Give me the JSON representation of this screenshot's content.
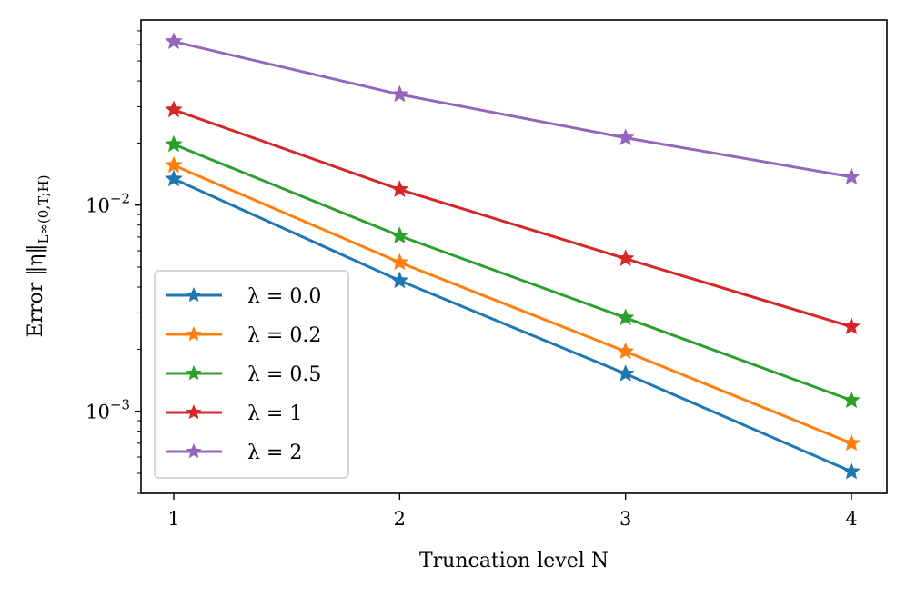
{
  "chart_data": {
    "type": "line",
    "xlabel": "Truncation level N",
    "ylabel_main": "Error ‖η‖",
    "ylabel_sub": "L∞(0,T;H)",
    "x": [
      1,
      2,
      3,
      4
    ],
    "xticks": [
      "1",
      "2",
      "3",
      "4"
    ],
    "xlim": [
      0.855,
      4.157
    ],
    "yscale": "log",
    "ylim": [
      0.0004,
      0.079
    ],
    "yticks": [
      {
        "value": 0.001,
        "base": "10",
        "exp": "−3"
      },
      {
        "value": 0.01,
        "base": "10",
        "exp": "−2"
      }
    ],
    "grid": false,
    "marker": "star",
    "legend_position": "lower-left",
    "series": [
      {
        "name": "λ = 0.0",
        "color": "#1f77b4",
        "values": [
          0.0134,
          0.0043,
          0.00152,
          0.00051
        ]
      },
      {
        "name": "λ = 0.2",
        "color": "#ff7f0e",
        "values": [
          0.0156,
          0.00527,
          0.00195,
          0.0007
        ]
      },
      {
        "name": "λ = 0.5",
        "color": "#2ca02c",
        "values": [
          0.0197,
          0.00709,
          0.00284,
          0.00113
        ]
      },
      {
        "name": "λ = 1",
        "color": "#d62728",
        "values": [
          0.029,
          0.0119,
          0.0055,
          0.00257
        ]
      },
      {
        "name": "λ = 2",
        "color": "#9467bd",
        "values": [
          0.0621,
          0.0344,
          0.0212,
          0.0137
        ]
      }
    ]
  }
}
